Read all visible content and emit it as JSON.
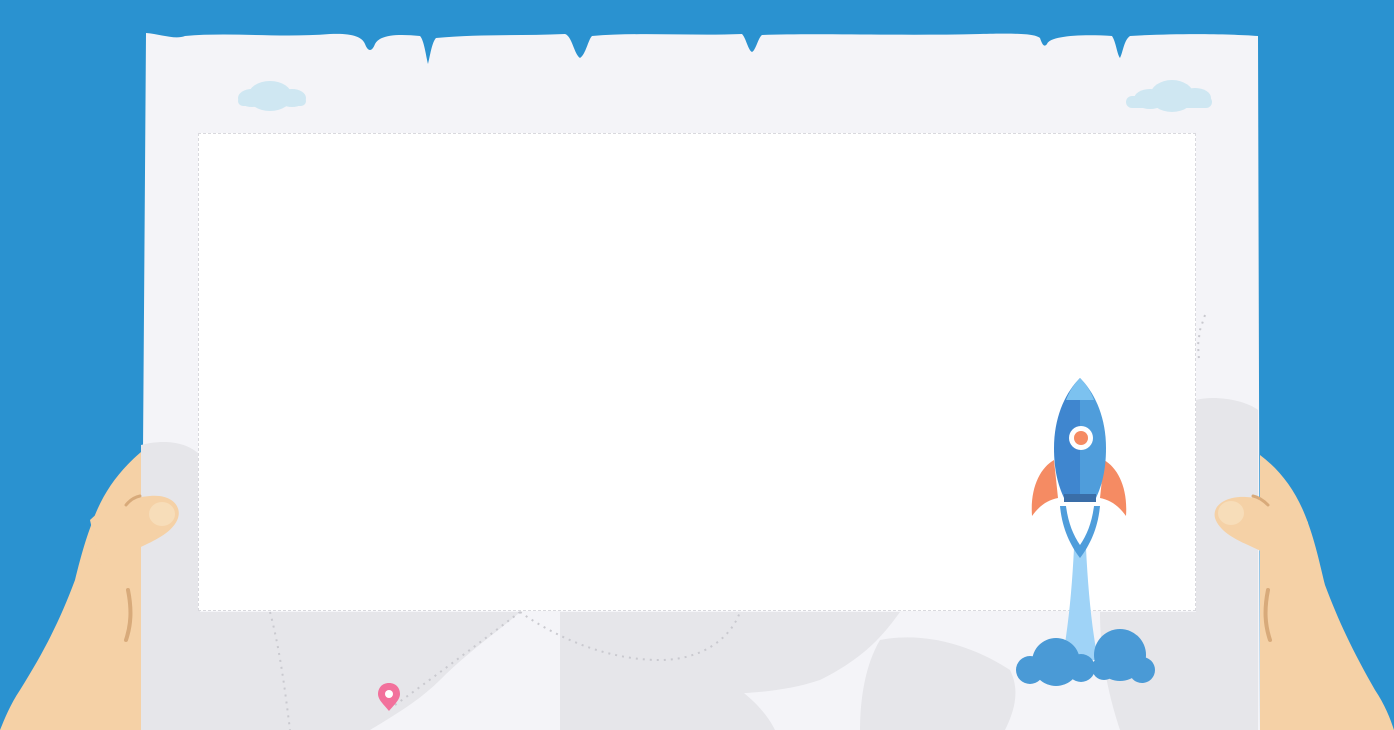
{
  "colors": {
    "background": "#2a92d0",
    "paper": "#f4f4f8",
    "panel": "#ffffff",
    "map_land": "#e6e6ea",
    "skin": "#f5d1a6",
    "skin_shadow": "#d8aa7a",
    "cloud_top": "#cfe7f2",
    "rocket_body": "#3f86cf",
    "rocket_body_light": "#4f9ddb",
    "rocket_nose": "#7cc2f0",
    "rocket_fin": "#f58b63",
    "rocket_window": "#f58b63",
    "exhaust": "#9fd3f7",
    "smoke": "#4a9ad6",
    "pin": "#f2719c"
  },
  "icons": {
    "rocket": "rocket-icon",
    "pin": "map-pin-icon",
    "cloud": "cloud-icon"
  }
}
